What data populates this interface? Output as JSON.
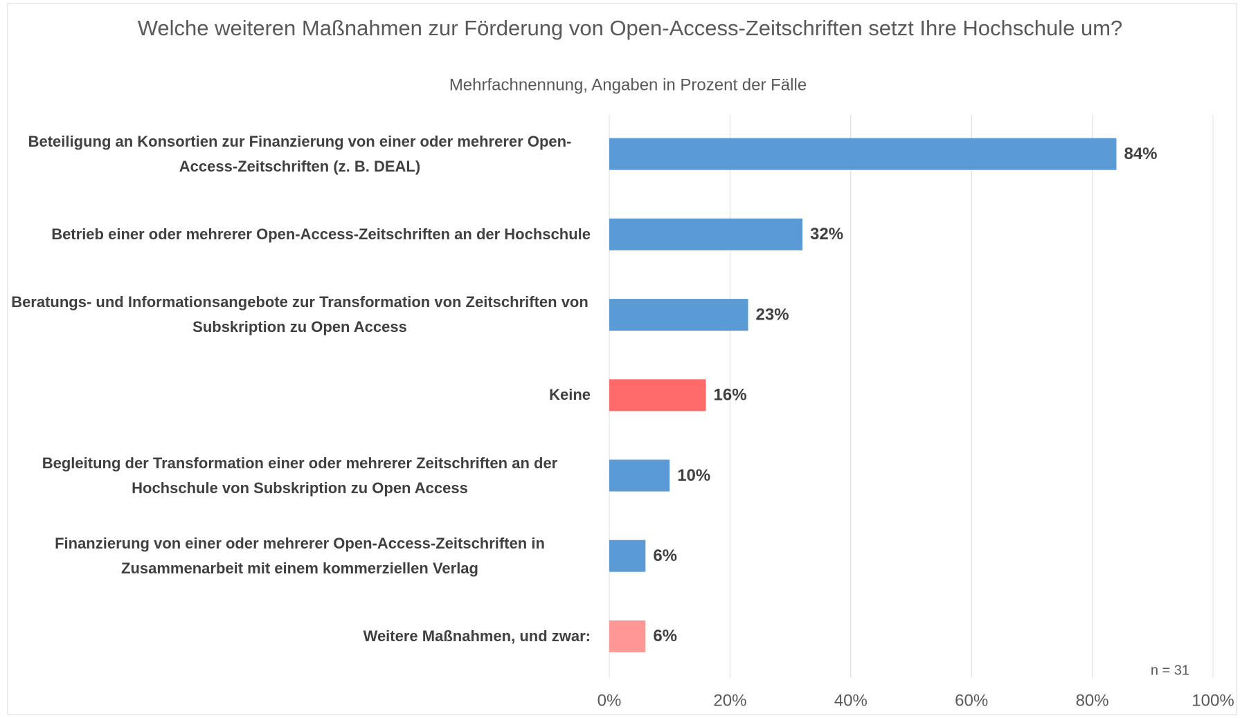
{
  "chart_data": {
    "type": "bar",
    "orientation": "horizontal",
    "title": "Welche weiteren Maßnahmen zur Förderung von Open-Access-Zeitschriften setzt Ihre Hochschule um?",
    "subtitle": "Mehrfachnennung, Angaben in Prozent der Fälle",
    "categories": [
      "Beteiligung an Konsortien zur Finanzierung von einer oder mehrerer Open-Access-Zeitschriften (z. B. DEAL)",
      "Betrieb einer oder mehrerer Open-Access-Zeitschriften an der Hochschule",
      "Beratungs- und Informationsangebote zur Transformation von Zeitschriften von Subskription zu Open Access",
      "Keine",
      "Begleitung der Transformation einer oder mehrerer Zeitschriften an der Hochschule von Subskription zu Open Access",
      "Finanzierung von einer oder mehrerer Open-Access-Zeitschriften in Zusammenarbeit mit einem kommerziellen Verlag",
      "Weitere Maßnahmen, und zwar:"
    ],
    "values": [
      84,
      32,
      23,
      16,
      10,
      6,
      6
    ],
    "value_labels": [
      "84%",
      "32%",
      "23%",
      "16%",
      "10%",
      "6%",
      "6%"
    ],
    "colors": [
      "#5b9bd5",
      "#5b9bd5",
      "#5b9bd5",
      "#ff6b6b",
      "#5b9bd5",
      "#5b9bd5",
      "#ff9797"
    ],
    "xlim": [
      0,
      100
    ],
    "xticks": [
      {
        "value": 0,
        "label": "0%"
      },
      {
        "value": 20,
        "label": "20%"
      },
      {
        "value": 40,
        "label": "40%"
      },
      {
        "value": 60,
        "label": "60%"
      },
      {
        "value": 80,
        "label": "80%"
      },
      {
        "value": 100,
        "label": "100%"
      }
    ],
    "grid": true,
    "annotation": "n = 31"
  }
}
